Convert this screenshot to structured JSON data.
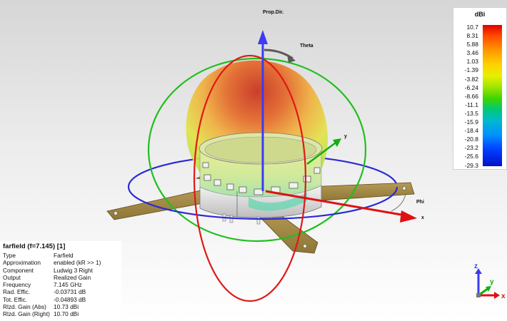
{
  "colorbar": {
    "unit": "dBi",
    "ticks": [
      "10.7",
      "8.31",
      "5.88",
      "3.46",
      "1.03",
      "-1.39",
      "-3.82",
      "-6.24",
      "-8.66",
      "-11.1",
      "-13.5",
      "-15.9",
      "-18.4",
      "-20.8",
      "-23.2",
      "-25.6",
      "-29.3"
    ]
  },
  "scene": {
    "prop_dir_label": "Prop.Dir.",
    "theta_label": "Theta",
    "phi_label": "Phi",
    "y_label": "y",
    "x_label": "x",
    "colors": {
      "z_axis": "#3b3bf0",
      "x_axis": "#e01010",
      "y_axis": "#10b010",
      "theta_arc": "#606060"
    }
  },
  "info": {
    "title": "farfield (f=7.145) [1]",
    "rows": [
      {
        "key": "Type",
        "value": "Farfield"
      },
      {
        "key": "Approximation",
        "value": "enabled (kR >> 1)"
      },
      {
        "key": "Component",
        "value": "Ludwig 3 Right"
      },
      {
        "key": "Output",
        "value": "Realized Gain"
      },
      {
        "key": "Frequency",
        "value": "7.145 GHz"
      },
      {
        "key": "Rad. Effic.",
        "value": "-0.03731 dB"
      },
      {
        "key": "Tot. Effic.",
        "value": "-0.04893 dB"
      },
      {
        "key": "Rlzd. Gain (Abs)",
        "value": "10.73 dBi"
      },
      {
        "key": "Rlzd. Gain (Right)",
        "value": "10.70 dBi"
      }
    ]
  },
  "axes_triad": {
    "z": "z",
    "y": "y",
    "x": "x"
  }
}
